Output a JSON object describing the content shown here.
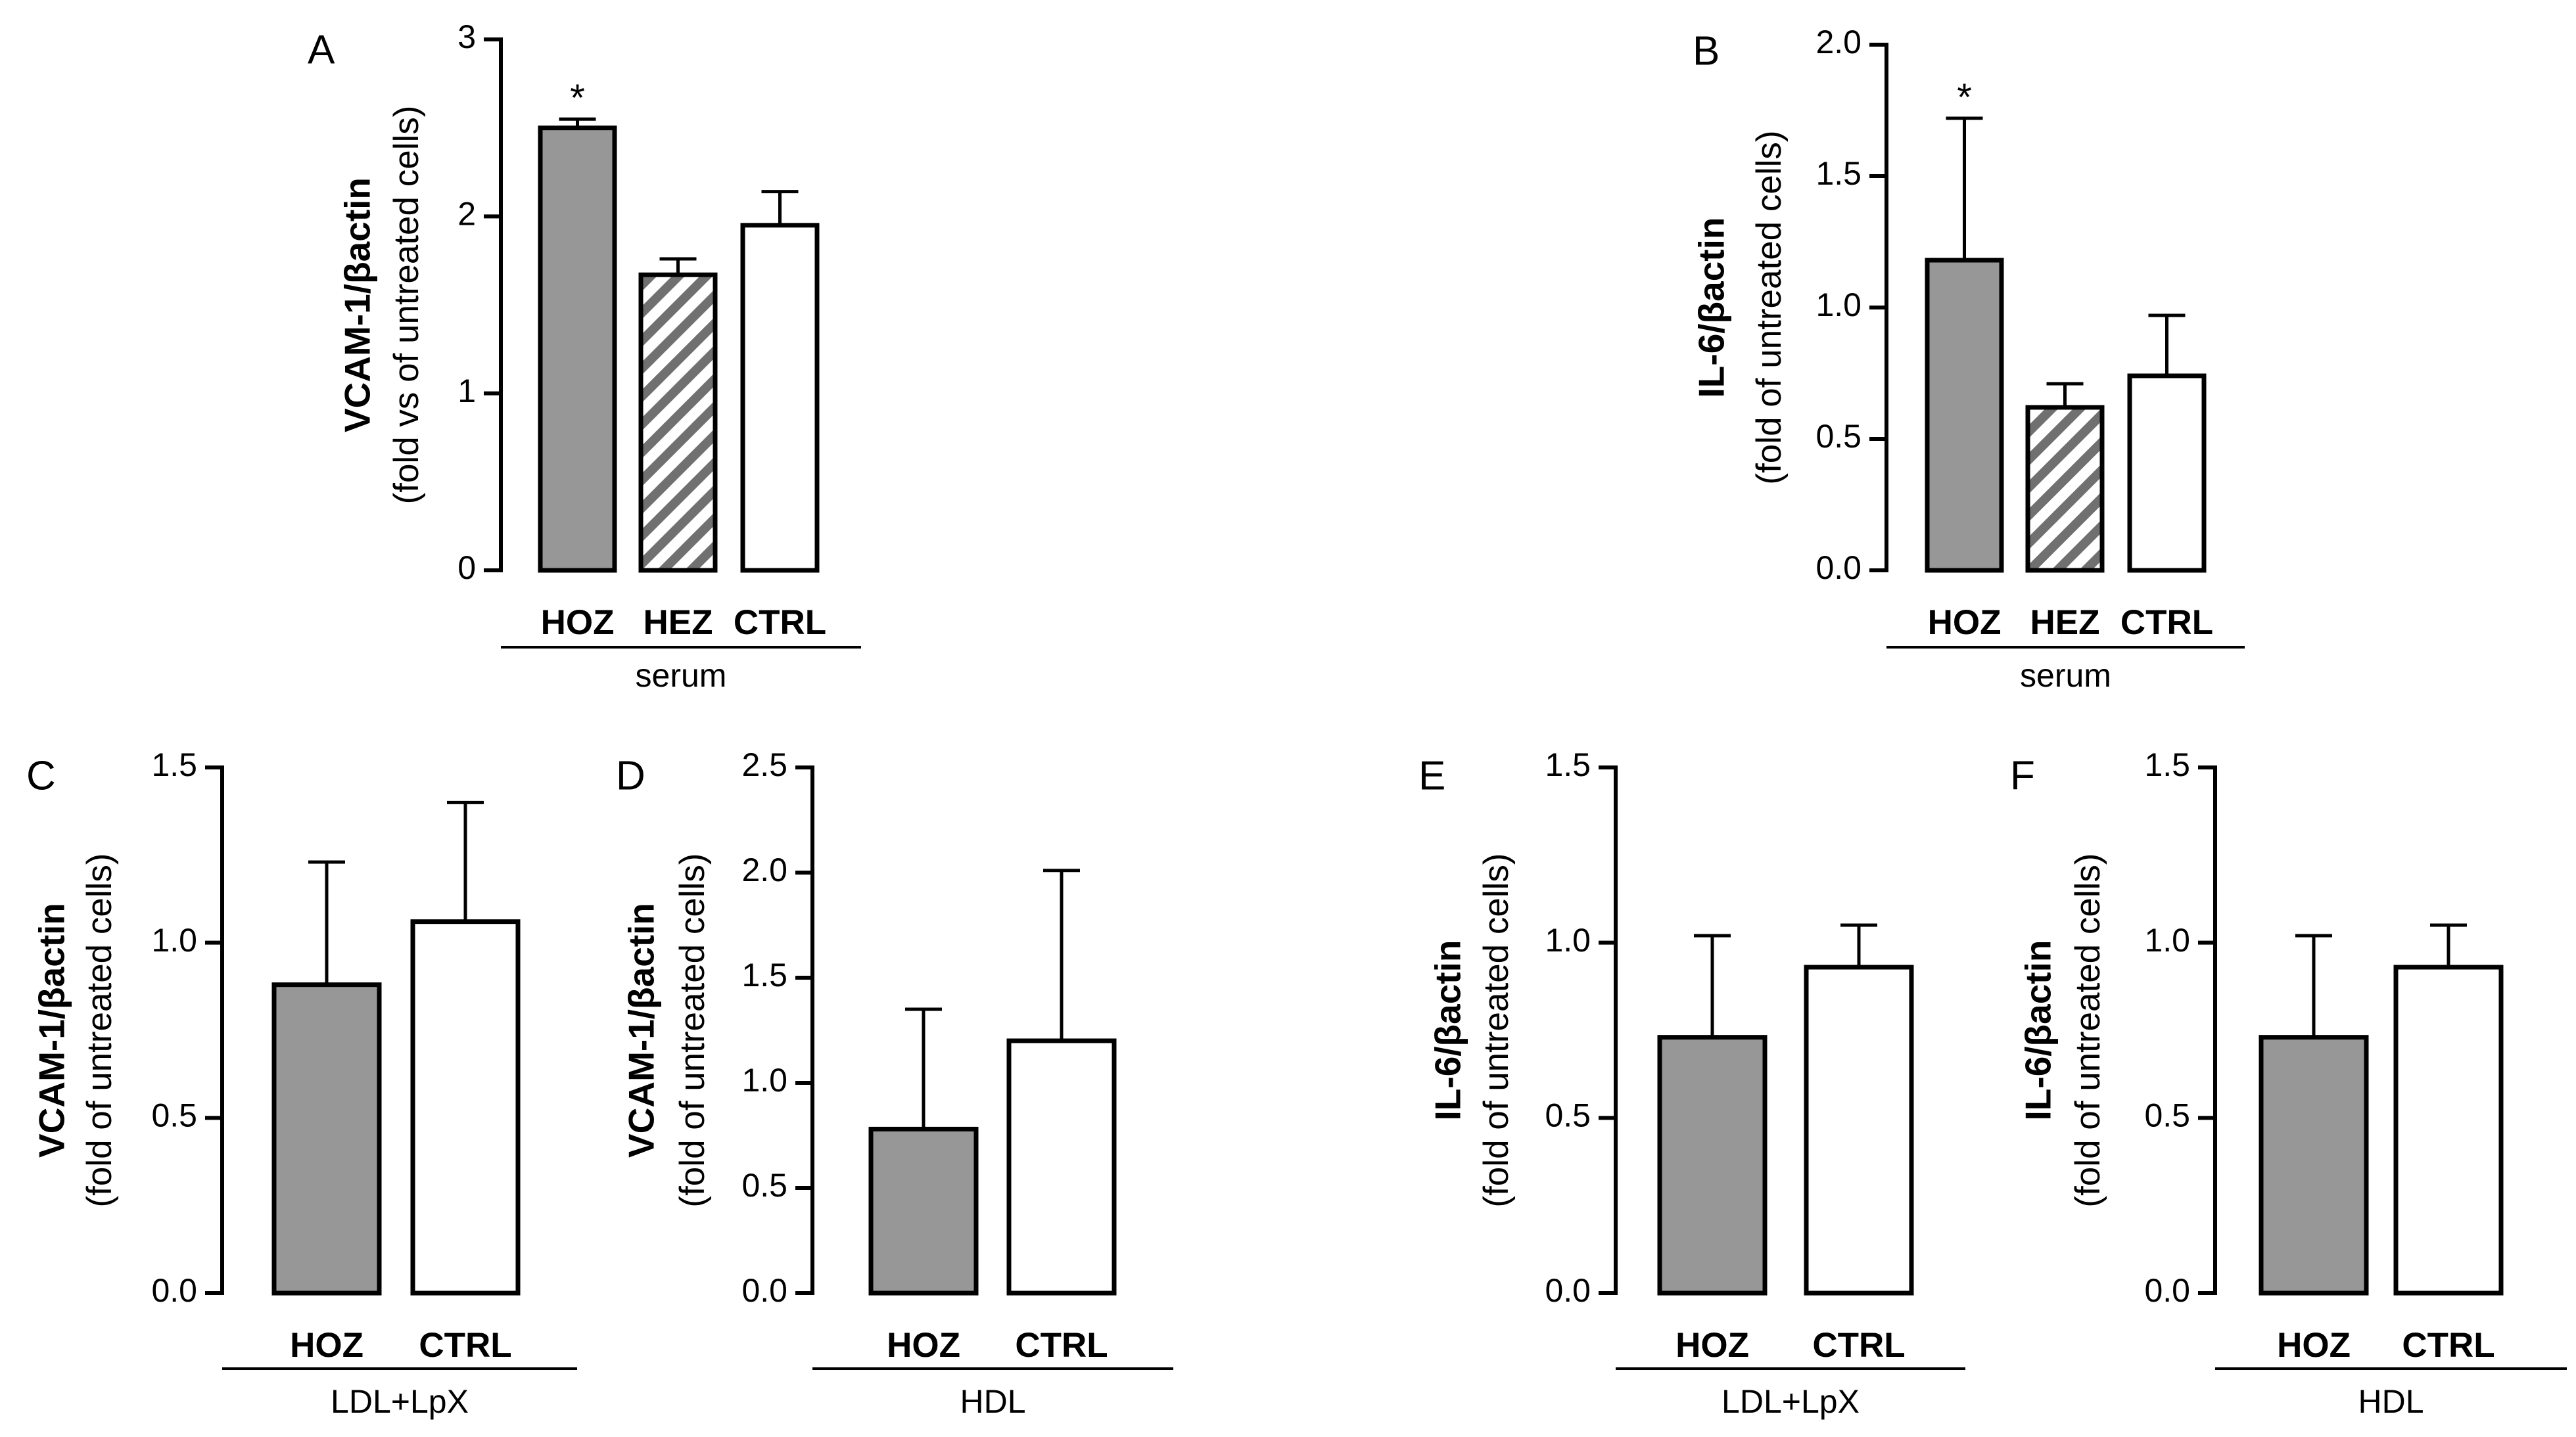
{
  "colors": {
    "hoz_fill": "#979797",
    "ctrl_fill": "#ffffff",
    "stroke": "#000000",
    "hatch": "#707070"
  },
  "chart_data": [
    {
      "panel": "A",
      "type": "bar",
      "categories": [
        "HOZ",
        "HEZ",
        "CTRL"
      ],
      "values": [
        2.5,
        1.67,
        1.95
      ],
      "errors": [
        0.05,
        0.09,
        0.19
      ],
      "fills": [
        "gray",
        "hatched",
        "white"
      ],
      "significance": [
        "*",
        "",
        ""
      ],
      "group_label": "serum",
      "ylabel": "VCAM-1/βactin",
      "ylabel_sub": "(fold vs of untreated cells)",
      "ylim": [
        0,
        3
      ],
      "yticks": [
        0,
        1,
        2,
        3
      ],
      "ytick_labels": [
        "0",
        "1",
        "2",
        "3"
      ]
    },
    {
      "panel": "B",
      "type": "bar",
      "categories": [
        "HOZ",
        "HEZ",
        "CTRL"
      ],
      "values": [
        1.18,
        0.62,
        0.74
      ],
      "errors": [
        0.54,
        0.09,
        0.23
      ],
      "fills": [
        "gray",
        "hatched",
        "white"
      ],
      "significance": [
        "*",
        "",
        ""
      ],
      "group_label": "serum",
      "ylabel": "IL-6/βactin",
      "ylabel_sub": "(fold of untreated cells)",
      "ylim": [
        0,
        2
      ],
      "yticks": [
        0,
        0.5,
        1,
        1.5,
        2
      ],
      "ytick_labels": [
        "0.0",
        "0.5",
        "1.0",
        "1.5",
        "2.0"
      ]
    },
    {
      "panel": "C",
      "type": "bar",
      "categories": [
        "HOZ",
        "CTRL"
      ],
      "values": [
        0.88,
        1.06
      ],
      "errors": [
        0.35,
        0.34
      ],
      "fills": [
        "gray",
        "white"
      ],
      "significance": [
        "",
        ""
      ],
      "group_label": "LDL+LpX",
      "ylabel": "VCAM-1/βactin",
      "ylabel_sub": "(fold of untreated cells)",
      "ylim": [
        0,
        1.5
      ],
      "yticks": [
        0,
        0.5,
        1,
        1.5
      ],
      "ytick_labels": [
        "0.0",
        "0.5",
        "1.0",
        "1.5"
      ]
    },
    {
      "panel": "D",
      "type": "bar",
      "categories": [
        "HOZ",
        "CTRL"
      ],
      "values": [
        0.78,
        1.2
      ],
      "errors": [
        0.57,
        0.81
      ],
      "fills": [
        "gray",
        "white"
      ],
      "significance": [
        "",
        ""
      ],
      "group_label": "HDL",
      "ylabel": "VCAM-1/βactin",
      "ylabel_sub": "(fold of untreated cells)",
      "ylim": [
        0,
        2.5
      ],
      "yticks": [
        0,
        0.5,
        1,
        1.5,
        2,
        2.5
      ],
      "ytick_labels": [
        "0.0",
        "0.5",
        "1.0",
        "1.5",
        "2.0",
        "2.5"
      ]
    },
    {
      "panel": "E",
      "type": "bar",
      "categories": [
        "HOZ",
        "CTRL"
      ],
      "values": [
        0.73,
        0.93
      ],
      "errors": [
        0.29,
        0.12
      ],
      "fills": [
        "gray",
        "white"
      ],
      "significance": [
        "",
        ""
      ],
      "group_label": "LDL+LpX",
      "ylabel": "IL-6/βactin",
      "ylabel_sub": "(fold of untreated cells)",
      "ylim": [
        0,
        1.5
      ],
      "yticks": [
        0,
        0.5,
        1,
        1.5
      ],
      "ytick_labels": [
        "0.0",
        "0.5",
        "1.0",
        "1.5"
      ]
    },
    {
      "panel": "F",
      "type": "bar",
      "categories": [
        "HOZ",
        "CTRL"
      ],
      "values": [
        0.73,
        0.93
      ],
      "errors": [
        0.29,
        0.12
      ],
      "fills": [
        "gray",
        "white"
      ],
      "significance": [
        "",
        ""
      ],
      "group_label": "HDL",
      "ylabel": "IL-6/βactin",
      "ylabel_sub": "(fold of untreated cells)",
      "ylim": [
        0,
        1.5
      ],
      "yticks": [
        0,
        0.5,
        1,
        1.5
      ],
      "ytick_labels": [
        "0.0",
        "0.5",
        "1.0",
        "1.5"
      ]
    }
  ]
}
